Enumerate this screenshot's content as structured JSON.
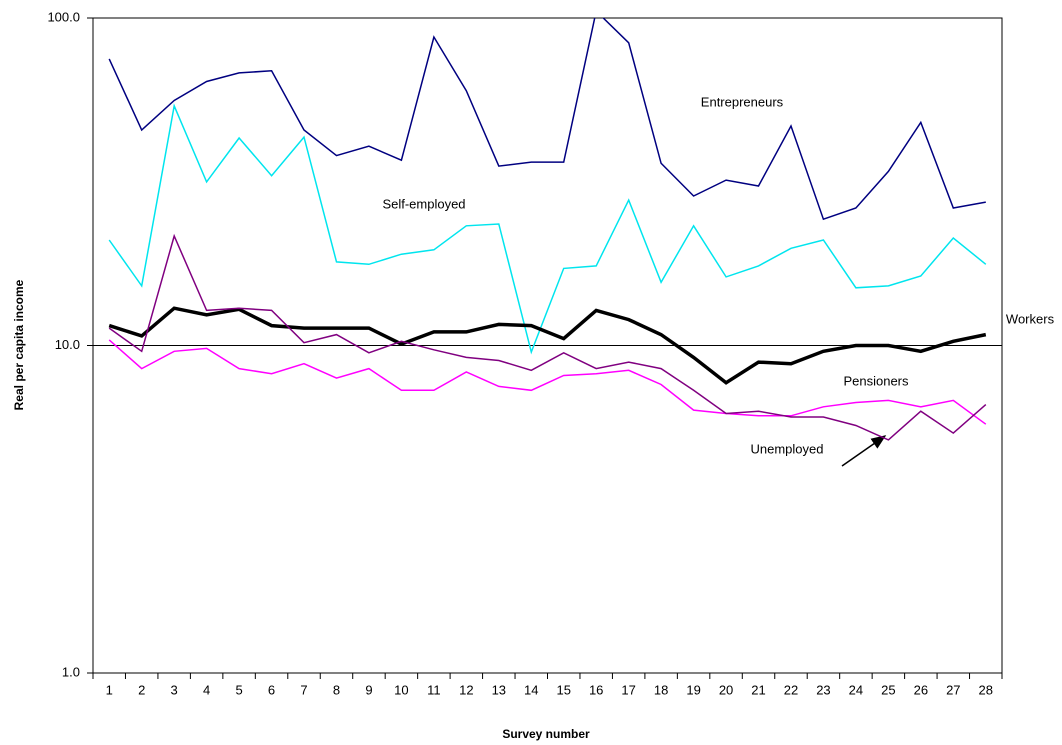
{
  "chart_data": {
    "type": "line",
    "x_label": "Survey number",
    "y_label": "Real per capita income",
    "categories": [
      "1",
      "2",
      "3",
      "4",
      "5",
      "6",
      "7",
      "8",
      "9",
      "10",
      "11",
      "12",
      "13",
      "14",
      "15",
      "16",
      "17",
      "18",
      "19",
      "20",
      "21",
      "22",
      "23",
      "24",
      "25",
      "26",
      "27",
      "28"
    ],
    "yscale": "log",
    "ylim": [
      1,
      100
    ],
    "yticks": [
      {
        "value": 1,
        "label": "1.0"
      },
      {
        "value": 10,
        "label": "10.0"
      },
      {
        "value": 100,
        "label": "100.0"
      }
    ],
    "grid": true,
    "series": [
      {
        "name": "Entrepreneurs",
        "color": "#000080",
        "width": 1.5,
        "values": [
          75,
          45.5,
          56,
          64,
          68,
          69,
          45.5,
          38,
          40.6,
          36.8,
          87.5,
          60,
          35.3,
          36.3,
          36.3,
          105,
          84,
          36,
          28.6,
          32,
          30.7,
          46.8,
          24.3,
          26.3,
          34,
          48,
          26.3,
          27.4
        ]
      },
      {
        "name": "Self-employed",
        "color": "#00e5ee",
        "width": 1.5,
        "values": [
          21,
          15.2,
          53.9,
          31.6,
          43,
          33,
          43.3,
          18,
          17.7,
          19,
          19.6,
          23.2,
          23.5,
          9.55,
          17.2,
          17.5,
          27.8,
          15.6,
          23.2,
          16.2,
          17.5,
          19.8,
          21,
          15,
          15.2,
          16.3,
          21.3,
          17.7
        ]
      },
      {
        "name": "Workers",
        "color": "#000000",
        "width": 3.5,
        "values": [
          11.5,
          10.7,
          13,
          12.4,
          12.9,
          11.5,
          11.3,
          11.3,
          11.3,
          10.1,
          11,
          11,
          11.6,
          11.5,
          10.5,
          12.8,
          12,
          10.8,
          9.2,
          7.7,
          8.9,
          8.8,
          9.6,
          10,
          10,
          9.6,
          10.3,
          10.8
        ]
      },
      {
        "name": "Pensioners",
        "color": "#ff00ff",
        "width": 1.5,
        "values": [
          10.4,
          8.5,
          9.6,
          9.8,
          8.5,
          8.2,
          8.8,
          7.95,
          8.5,
          7.3,
          7.3,
          8.3,
          7.5,
          7.3,
          8.1,
          8.2,
          8.4,
          7.6,
          6.35,
          6.2,
          6.1,
          6.1,
          6.5,
          6.7,
          6.8,
          6.5,
          6.8,
          5.75
        ]
      },
      {
        "name": "Unemployed",
        "color": "#800080",
        "width": 1.5,
        "values": [
          11.3,
          9.6,
          21.6,
          12.8,
          13,
          12.8,
          10.2,
          10.8,
          9.5,
          10.3,
          9.7,
          9.2,
          9,
          8.4,
          9.5,
          8.5,
          8.9,
          8.5,
          7.3,
          6.2,
          6.3,
          6.05,
          6.05,
          5.7,
          5.15,
          6.3,
          5.4,
          6.6
        ]
      }
    ]
  }
}
